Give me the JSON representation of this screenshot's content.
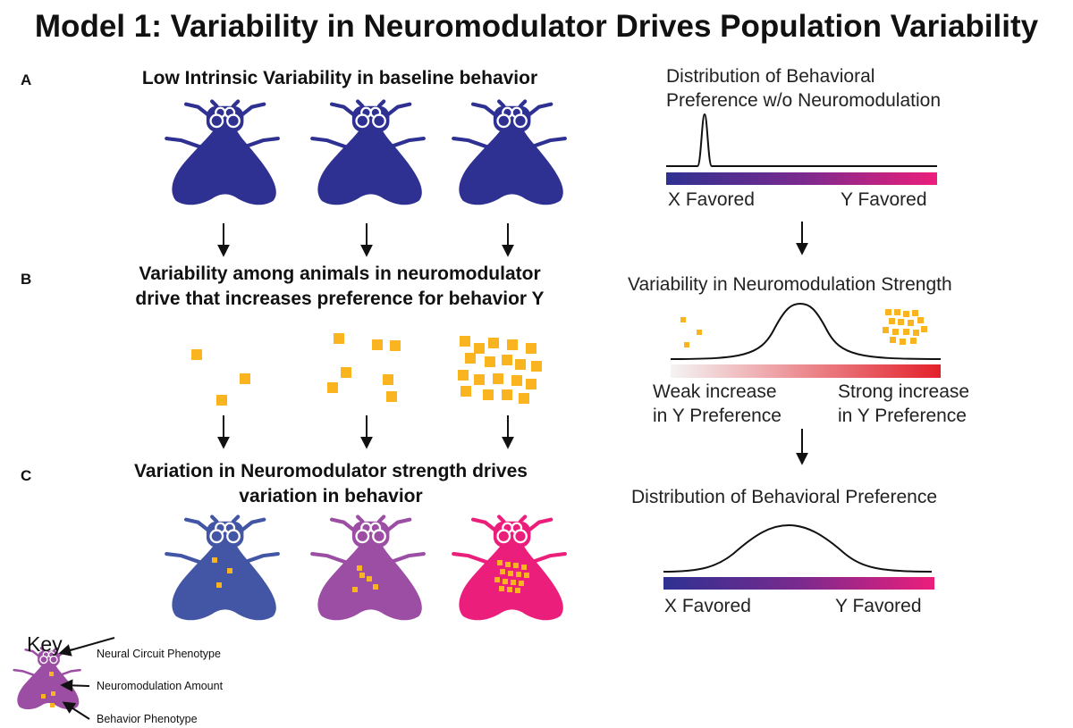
{
  "title": "Model 1: Variability in Neuromodulator Drives Population Variability",
  "panels": {
    "a": {
      "letter": "A",
      "heading": "Low Intrinsic Variability in baseline behavior"
    },
    "b": {
      "letter": "B",
      "heading_line1": "Variability among animals in neuromodulator",
      "heading_line2": "drive that increases preference for behavior Y"
    },
    "c": {
      "letter": "C",
      "heading_line1": "Variation in Neuromodulator strength drives",
      "heading_line2": "variation in behavior"
    }
  },
  "right": {
    "dist1_title_line1": "Distribution of Behavioral",
    "dist1_title_line2": "Preference w/o Neuromodulation",
    "x_favored": "X Favored",
    "y_favored": "Y Favored",
    "strength_title": "Variability in Neuromodulation Strength",
    "weak_line1": "Weak increase",
    "weak_line2": "in Y Preference",
    "strong_line1": "Strong increase",
    "strong_line2": "in Y Preference",
    "dist2_title": "Distribution of Behavioral Preference"
  },
  "key": {
    "title": "Key",
    "neural": "Neural Circuit Phenotype",
    "neuromod": "Neuromodulation Amount",
    "behavior": "Behavior Phenotype"
  },
  "colors": {
    "fly_baseline": "#2e3192",
    "fly_low": "#4355a5",
    "fly_mid": "#9b4ea3",
    "fly_high": "#ec1e7b",
    "neuromodulator": "#f9b41f",
    "x_favored": "#2e3192",
    "y_favored": "#ec1e7b",
    "strong": "#e3202a"
  }
}
